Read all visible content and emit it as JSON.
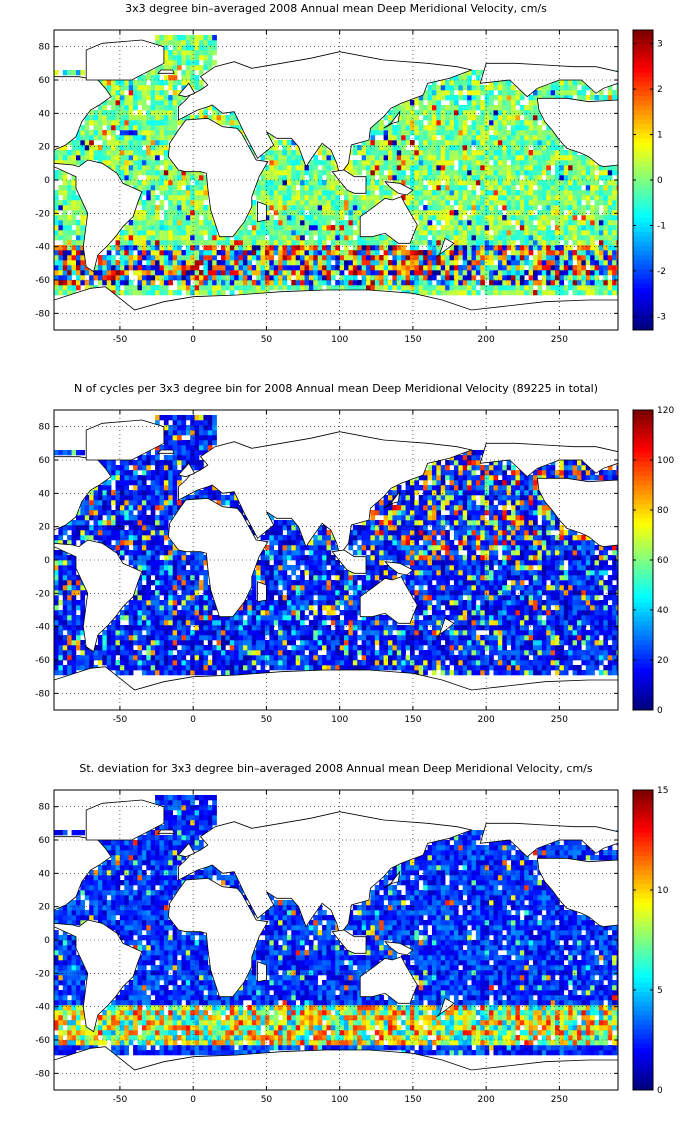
{
  "chart_data": [
    {
      "type": "heatmap",
      "title": "3x3 degree bin–averaged 2008 Annual mean Deep Meridional Velocity, cm/s",
      "xlabel": "",
      "ylabel": "",
      "xlim": [
        -95,
        290
      ],
      "ylim": [
        -90,
        90
      ],
      "x_ticks": [
        -50,
        0,
        50,
        100,
        150,
        200,
        250
      ],
      "y_ticks": [
        80,
        60,
        40,
        20,
        0,
        -20,
        -40,
        -60,
        -80
      ],
      "grid": true,
      "colormap": "jet",
      "colorbar": {
        "min": -3.3,
        "max": 3.3,
        "ticks": [
          3,
          2,
          1,
          0,
          -1,
          -2,
          -3
        ],
        "position": "right"
      },
      "bin_size_deg": 3,
      "summary": "Gridded 3x3 degree bin means over ocean areas; values mostly near 0 (green/cyan) with strong positive and negative values (red/blue) along the Southern Ocean (~-40 to -60) and western boundaries."
    },
    {
      "type": "heatmap",
      "title": "N of cycles per 3x3 degree bin for 2008 Annual mean Deep Meridional Velocity (89225 in total)",
      "xlabel": "",
      "ylabel": "",
      "xlim": [
        -95,
        290
      ],
      "ylim": [
        -90,
        90
      ],
      "x_ticks": [
        -50,
        0,
        50,
        100,
        150,
        200,
        250
      ],
      "y_ticks": [
        80,
        60,
        40,
        20,
        0,
        -20,
        -40,
        -60,
        -80
      ],
      "grid": true,
      "colormap": "jet",
      "colorbar": {
        "min": 0,
        "max": 120,
        "ticks": [
          120,
          100,
          80,
          60,
          40,
          20,
          0
        ],
        "position": "right"
      },
      "bin_size_deg": 3,
      "total_cycles": 89225,
      "summary": "Counts per bin mostly 5-40 (blue), with higher counts (40-110) scattered in the North Pacific and Indian Ocean."
    },
    {
      "type": "heatmap",
      "title": "St. deviation for 3x3 degree bin–averaged 2008 Annual mean Deep Meridional Velocity, cm/s",
      "xlabel": "",
      "ylabel": "",
      "xlim": [
        -95,
        290
      ],
      "ylim": [
        -90,
        90
      ],
      "x_ticks": [
        -50,
        0,
        50,
        100,
        150,
        200,
        250
      ],
      "y_ticks": [
        80,
        60,
        40,
        20,
        0,
        -20,
        -40,
        -60,
        -80
      ],
      "grid": true,
      "colormap": "jet",
      "colorbar": {
        "min": 0,
        "max": 15,
        "ticks": [
          15,
          10,
          5,
          0
        ],
        "position": "right"
      },
      "bin_size_deg": 3,
      "summary": "Standard deviation mostly 1-4 cm/s (blue); high values (6-14 cm/s) along the Antarctic Circumpolar Current band near -40 to -55 and in western boundary currents."
    }
  ]
}
